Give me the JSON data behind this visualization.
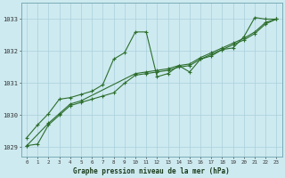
{
  "title": "Graphe pression niveau de la mer (hPa)",
  "background_color": "#cdeaf0",
  "grid_color": "#aacfdb",
  "line_color": "#2d6e2d",
  "xlim": [
    -0.5,
    23.5
  ],
  "ylim": [
    1028.7,
    1033.5
  ],
  "yticks": [
    1029,
    1030,
    1031,
    1032,
    1033
  ],
  "xticks": [
    0,
    1,
    2,
    3,
    4,
    5,
    6,
    7,
    8,
    9,
    10,
    11,
    12,
    13,
    14,
    15,
    16,
    17,
    18,
    19,
    20,
    21,
    22,
    23
  ],
  "series": [
    {
      "x": [
        0,
        1,
        2,
        3,
        4,
        5,
        6,
        7,
        8,
        9,
        10,
        11,
        12,
        13,
        14,
        15,
        16,
        17,
        18,
        19,
        20,
        21,
        22,
        23
      ],
      "y": [
        1029.3,
        1029.7,
        1030.05,
        1030.5,
        1030.55,
        1030.65,
        1030.75,
        1030.95,
        1031.75,
        1031.95,
        1032.6,
        1032.6,
        1031.2,
        1031.3,
        1031.55,
        1031.35,
        1031.75,
        1031.85,
        1032.05,
        1032.1,
        1032.45,
        1033.05,
        1033.0,
        1033.0
      ]
    },
    {
      "x": [
        0,
        1,
        2,
        3,
        4,
        5,
        6,
        7,
        8,
        9,
        10,
        11,
        12,
        13,
        14,
        15,
        16,
        17,
        18,
        19,
        20,
        21,
        22,
        23
      ],
      "y": [
        1029.05,
        1029.1,
        1029.7,
        1030.0,
        1030.3,
        1030.4,
        1030.5,
        1030.6,
        1030.7,
        1031.0,
        1031.25,
        1031.3,
        1031.35,
        1031.4,
        1031.5,
        1031.55,
        1031.75,
        1031.9,
        1032.05,
        1032.2,
        1032.35,
        1032.55,
        1032.85,
        1033.0
      ]
    },
    {
      "x": [
        0,
        2,
        3,
        4,
        5,
        10,
        11,
        12,
        13,
        14,
        15,
        16,
        17,
        18,
        19,
        20,
        21,
        22,
        23
      ],
      "y": [
        1029.05,
        1029.75,
        1030.05,
        1030.35,
        1030.45,
        1031.3,
        1031.35,
        1031.4,
        1031.45,
        1031.55,
        1031.6,
        1031.8,
        1031.95,
        1032.1,
        1032.25,
        1032.4,
        1032.6,
        1032.9,
        1033.0
      ]
    }
  ]
}
